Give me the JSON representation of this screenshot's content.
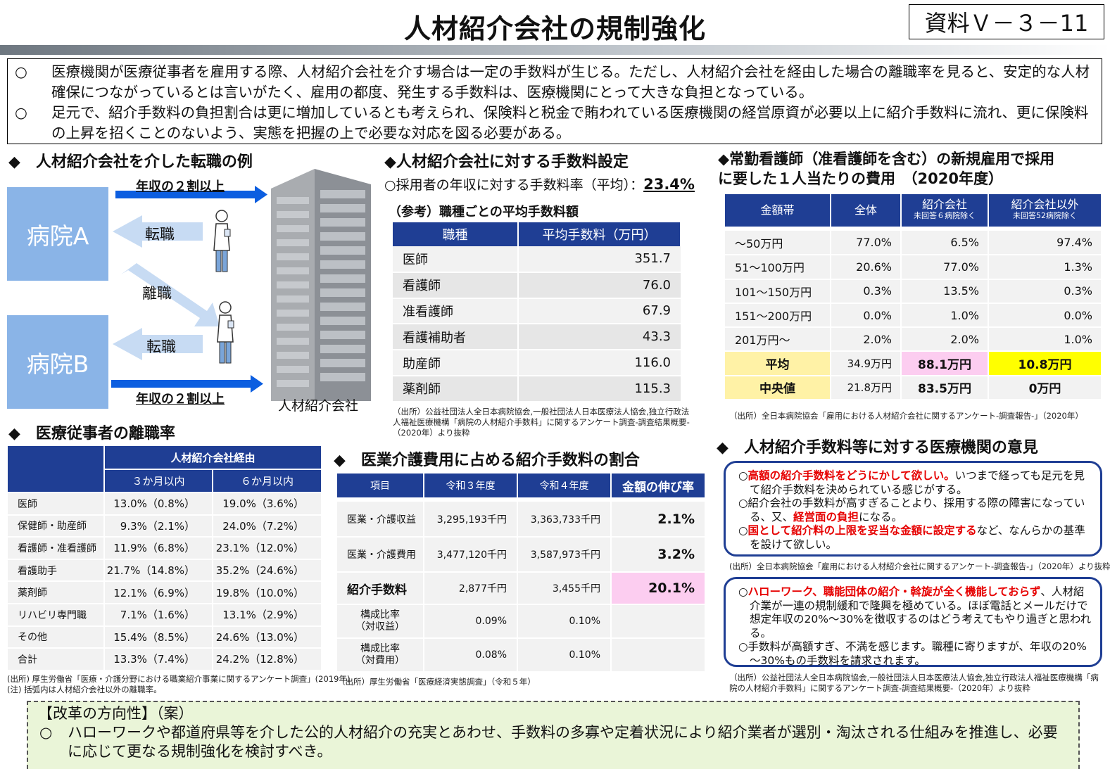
{
  "header": {
    "title": "人材紹介会社の規制強化",
    "doc_no": "資料Ｖ－３－11"
  },
  "intro": [
    {
      "mark": "○",
      "text": "医療機関が医療従事者を雇用する際、人材紹介会社を介す場合は一定の手数料が生じる。ただし、人材紹介会社を経由した場合の離職率を見ると、安定的な人材確保につながっているとは言いがたく、雇用の都度、発生する手数料は、医療機関にとって大きな負担となっている。"
    },
    {
      "mark": "○",
      "text": "足元で、紹介手数料の負担割合は更に増加しているとも考えられ、保険料と税金で賄われている医療機関の経営原資が必要以上に紹介手数料に流れ、更に保険料の上昇を招くことのないよう、実態を把握の上で必要な対応を図る必要がある。"
    }
  ],
  "flow": {
    "heading": "◆　人材紹介会社を介した転職の例",
    "hospital_a": "病院A",
    "hospital_b": "病院B",
    "top_label": "年収の２割以上",
    "bottom_label": "年収の２割以上",
    "tenshoku1": "転職",
    "rishoku": "離職",
    "tenshoku2": "転職",
    "agency": "人材紹介会社"
  },
  "fee": {
    "heading": "◆人材紹介会社に対する手数料設定",
    "rate_label": "○採用者の年収に対する手数料率（平均）：",
    "rate_value": "23.4%",
    "sub_heading": "（参考）職種ごとの平均手数料額",
    "columns": [
      "職種",
      "平均手数料（万円）"
    ],
    "rows": [
      {
        "k": "医師",
        "v": "351.7"
      },
      {
        "k": "看護師",
        "v": "76.0"
      },
      {
        "k": "准看護師",
        "v": "67.9"
      },
      {
        "k": "看護補助者",
        "v": "43.3"
      },
      {
        "k": "助産師",
        "v": "116.0"
      },
      {
        "k": "薬剤師",
        "v": "115.3"
      }
    ],
    "source": "（出所）公益社団法人全日本病院協会,一般社団法人日本医療法人協会,独立行政法人福祉医療機構「病院の人材紹介手数料」に関するアンケート調査-調査結果概要-（2020年）より抜粋"
  },
  "cost": {
    "heading1": "◆常勤看護師（准看護師を含む）の新規雇用で採用",
    "heading2": "に要した１人当たりの費用　（2020年度）",
    "col1": "金額帯",
    "col2": "全体",
    "col3": "紹介会社",
    "col3_sub": "未回答６病院除く",
    "col4": "紹介会社以外",
    "col4_sub": "未回答52病院除く",
    "rows": [
      [
        "～50万円",
        "77.0%",
        "6.5%",
        "97.4%"
      ],
      [
        "51～100万円",
        "20.6%",
        "77.0%",
        "1.3%"
      ],
      [
        "101～150万円",
        "0.3%",
        "13.5%",
        "0.3%"
      ],
      [
        "151～200万円",
        "0.0%",
        "1.0%",
        "0.0%"
      ],
      [
        "201万円～",
        "2.0%",
        "2.0%",
        "1.0%"
      ]
    ],
    "avg": [
      "平均",
      "34.9万円",
      "88.1万円",
      "10.8万円"
    ],
    "median": [
      "中央値",
      "21.8万円",
      "83.5万円",
      "0万円"
    ],
    "source": "（出所）全日本病院協会「雇用における人材紹介会社に関するアンケート-調査報告-」（2020年）"
  },
  "rate": {
    "heading": "◆　医療従事者の離職率",
    "group_header": "人材紹介会社経由",
    "col_3m": "３か月以内",
    "col_6m": "６か月以内",
    "rows": [
      [
        "医師",
        "13.0%（0.8%）",
        "19.0%（3.6%）"
      ],
      [
        "保健師・助産師",
        "9.3%（2.1%）",
        "24.0%（7.2%）"
      ],
      [
        "看護師・准看護師",
        "11.9%（6.8%）",
        "23.1%（12.0%）"
      ],
      [
        "看護助手",
        "21.7%（14.8%）",
        "35.2%（24.6%）"
      ],
      [
        "薬剤師",
        "12.1%（6.9%）",
        "19.8%（10.0%）"
      ],
      [
        "リハビリ専門職",
        "7.1%（1.6%）",
        "13.1%（2.9%）"
      ],
      [
        "その他",
        "15.4%（8.5%）",
        "24.6%（13.0%）"
      ],
      [
        "合計",
        "13.3%（7.4%）",
        "24.2%（12.8%）"
      ]
    ],
    "source1": "(出所) 厚生労働省「医療・介護分野における職業紹介事業に関するアンケート調査」(2019年)",
    "source2": "(注) 括弧内は人材紹介会社以外の離職率。"
  },
  "med": {
    "heading": "◆　医業介護費用に占める紹介手数料の割合",
    "columns": [
      "項目",
      "令和３年度",
      "令和４年度",
      "金額の伸び率"
    ],
    "rows": [
      {
        "k": "医業・介護収益",
        "a": "3,295,193千円",
        "b": "3,363,733千円",
        "g": "2.1%"
      },
      {
        "k": "医業・介護費用",
        "a": "3,477,120千円",
        "b": "3,587,973千円",
        "g": "3.2%"
      },
      {
        "k": "紹介手数料",
        "a": "2,877千円",
        "b": "3,455千円",
        "g": "20.1%"
      }
    ],
    "ratio1_label": "構成比率",
    "ratio1_sub": "（対収益）",
    "ratio1_a": "0.09%",
    "ratio1_b": "0.10%",
    "ratio2_label": "構成比率",
    "ratio2_sub": "（対費用）",
    "ratio2_a": "0.08%",
    "ratio2_b": "0.10%",
    "source": "（出所）厚生労働省「医療経済実態調査」（令和５年）"
  },
  "opinions": {
    "heading": "◆　人材紹介手数料等に対する医療機関の意見",
    "box1": [
      {
        "pre": "○",
        "red": "高額の紹介手数料をどうにかして欲しい。",
        "post": "いつまで経っても足元を見て紹介手数料を決められている感じがする。"
      },
      {
        "pre": "○紹介会社の手数料が高すぎることより、採用する際の障害になっている、又、",
        "red": "経営面の負担",
        "post": "になる。"
      },
      {
        "pre": "○",
        "red": "国として紹介料の上限を妥当な金額に設定する",
        "post": "など、なんらかの基準を設けて欲しい。"
      }
    ],
    "source1": "(出所）全日本病院協会「雇用における人材紹介会社に関するアンケート-調査報告-」（2020年）より抜粋",
    "box2": [
      {
        "pre": "○",
        "red": "ハローワーク、職能団体の紹介・斡旋が全く機能しておらず",
        "post": "、人材紹介業が一連の規制緩和で隆興を極めている。ほぼ電話とメールだけで想定年収の20%～30%を徴収するのはどう考えてもやり過ぎと思われる。"
      },
      {
        "pre": "○手数料が高額すぎ、不満を感じます。職種に寄りますが、年収の20%～30%もの手数料を請求されます。",
        "red": "",
        "post": ""
      }
    ],
    "source2": "（出所）公益社団法人全日本病院協会,一般社団法人日本医療法人協会,独立行政法人福祉医療機構「病院の人材紹介手数料」に関するアンケート調査-調査結果概要-（2020年）より抜粋"
  },
  "reform": {
    "heading": "【改革の方向性】（案）",
    "mark": "○",
    "text": "ハローワークや都道府県等を介した公的人材紹介の充実とあわせ、手数料の多寡や定着状況により紹介業者が選別・淘汰される仕組みを推進し、必要に応じて更なる規制強化を検討すべき。"
  },
  "colors": {
    "navy": "#1f3e94",
    "hospital": "#8ab4e7",
    "arrow": "#0c5ee0",
    "light_arrow": "#c7dbf3",
    "red": "#e60000",
    "yellow": "#ffff00",
    "pink": "#fccdf0",
    "reform_bg": "#eaf5d8"
  }
}
